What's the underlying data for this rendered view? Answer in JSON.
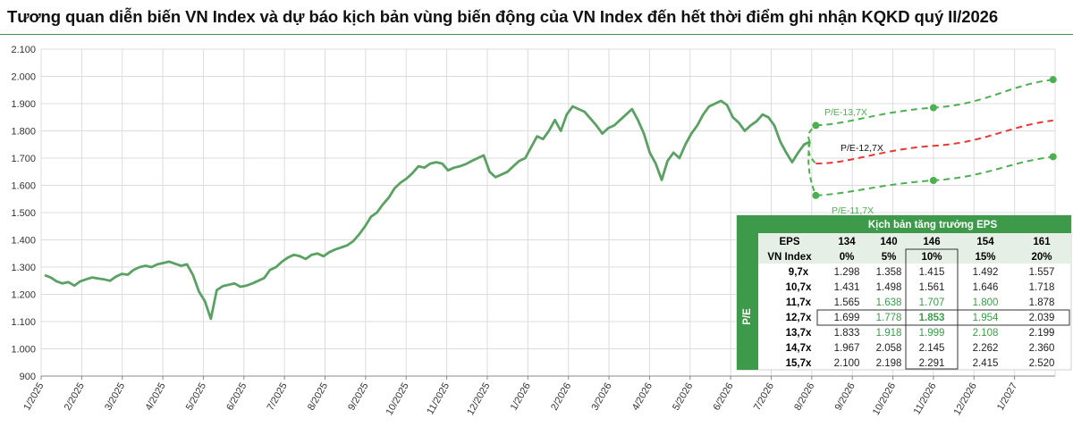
{
  "title": "Tương quan diễn biến VN Index và dự báo kịch bản vùng biến động của VN Index đến hết thời điểm ghi nhận KQKD quý II/2026",
  "colors": {
    "line": "#5aa163",
    "accent_green": "#4caf50",
    "projection_green": "#4caf50",
    "projection_red": "#e53935",
    "header_green": "#3d9a4a"
  },
  "chart_data": {
    "type": "line",
    "title": "Tương quan diễn biến VN Index và dự báo kịch bản vùng biến động của VN Index đến hết thời điểm ghi nhận KQKD quý II/2026",
    "ylim": [
      900,
      2100
    ],
    "yticks": [
      "900",
      "1.000",
      "1.100",
      "1.200",
      "1.300",
      "1.400",
      "1.500",
      "1.600",
      "1.700",
      "1.800",
      "1.900",
      "2.000",
      "2.100"
    ],
    "ytick_values": [
      900,
      1000,
      1100,
      1200,
      1300,
      1400,
      1500,
      1600,
      1700,
      1800,
      1900,
      2000,
      2100
    ],
    "xticks": [
      "1/2025",
      "2/2025",
      "3/2025",
      "4/2025",
      "5/2025",
      "6/2025",
      "7/2025",
      "8/2025",
      "9/2025",
      "10/2025",
      "11/2025",
      "12/2025",
      "1/2026",
      "2/2026",
      "3/2026",
      "4/2026",
      "5/2026",
      "6/2026",
      "7/2026",
      "8/2026",
      "9/2026",
      "10/2026",
      "11/2026",
      "12/2026",
      "1/2027"
    ],
    "grid": true,
    "series": [
      {
        "name": "VN Index",
        "values": [
          1270,
          1262,
          1248,
          1240,
          1245,
          1232,
          1248,
          1255,
          1262,
          1258,
          1255,
          1250,
          1265,
          1275,
          1272,
          1290,
          1300,
          1305,
          1300,
          1310,
          1315,
          1320,
          1312,
          1305,
          1310,
          1270,
          1210,
          1175,
          1110,
          1215,
          1230,
          1235,
          1240,
          1228,
          1232,
          1240,
          1250,
          1260,
          1290,
          1300,
          1320,
          1335,
          1345,
          1340,
          1330,
          1345,
          1350,
          1340,
          1355,
          1365,
          1372,
          1380,
          1395,
          1420,
          1450,
          1485,
          1500,
          1530,
          1555,
          1590,
          1610,
          1625,
          1645,
          1670,
          1665,
          1680,
          1685,
          1680,
          1655,
          1665,
          1670,
          1678,
          1690,
          1700,
          1710,
          1650,
          1630,
          1640,
          1650,
          1670,
          1690,
          1700,
          1740,
          1780,
          1770,
          1800,
          1840,
          1800,
          1860,
          1890,
          1880,
          1870,
          1845,
          1820,
          1790,
          1810,
          1820,
          1840,
          1860,
          1880,
          1840,
          1790,
          1720,
          1680,
          1620,
          1690,
          1720,
          1700,
          1750,
          1790,
          1820,
          1860,
          1890,
          1900,
          1910,
          1895,
          1850,
          1830,
          1800,
          1820,
          1835,
          1860,
          1850,
          1820,
          1760,
          1720,
          1685,
          1720,
          1750,
          1760
        ]
      }
    ],
    "projections": [
      {
        "label": "P/E-13,7X",
        "start": 1820,
        "mid": 1885,
        "end": 1988
      },
      {
        "label": "P/E-12,7X",
        "start": 1680,
        "mid": 1745,
        "end": 1838
      },
      {
        "label": "P/E-11,7X",
        "start": 1563,
        "mid": 1618,
        "end": 1705
      }
    ]
  },
  "table": {
    "title": "Kịch bản tăng trưởng EPS",
    "pe_axis_label": "P/E",
    "eps_label": "EPS",
    "vnindex_label": "VN Index",
    "eps_values": [
      "134",
      "140",
      "146",
      "154",
      "161"
    ],
    "growth": [
      "0%",
      "5%",
      "10%",
      "15%",
      "20%"
    ],
    "rows": [
      {
        "pe": "9,7x",
        "cells": [
          "1.298",
          "1.358",
          "1.415",
          "1.492",
          "1.557"
        ]
      },
      {
        "pe": "10,7x",
        "cells": [
          "1.431",
          "1.498",
          "1.561",
          "1.646",
          "1.718"
        ]
      },
      {
        "pe": "11,7x",
        "cells": [
          "1.565",
          "1.638",
          "1.707",
          "1.800",
          "1.878"
        ]
      },
      {
        "pe": "12,7x",
        "cells": [
          "1.699",
          "1.778",
          "1.853",
          "1.954",
          "2.039"
        ]
      },
      {
        "pe": "13,7x",
        "cells": [
          "1.833",
          "1.918",
          "1.999",
          "2.108",
          "2.199"
        ]
      },
      {
        "pe": "14,7x",
        "cells": [
          "1.967",
          "2.058",
          "2.145",
          "2.262",
          "2.360"
        ]
      },
      {
        "pe": "15,7x",
        "cells": [
          "2.100",
          "2.198",
          "2.291",
          "2.415",
          "2.520"
        ]
      }
    ]
  }
}
